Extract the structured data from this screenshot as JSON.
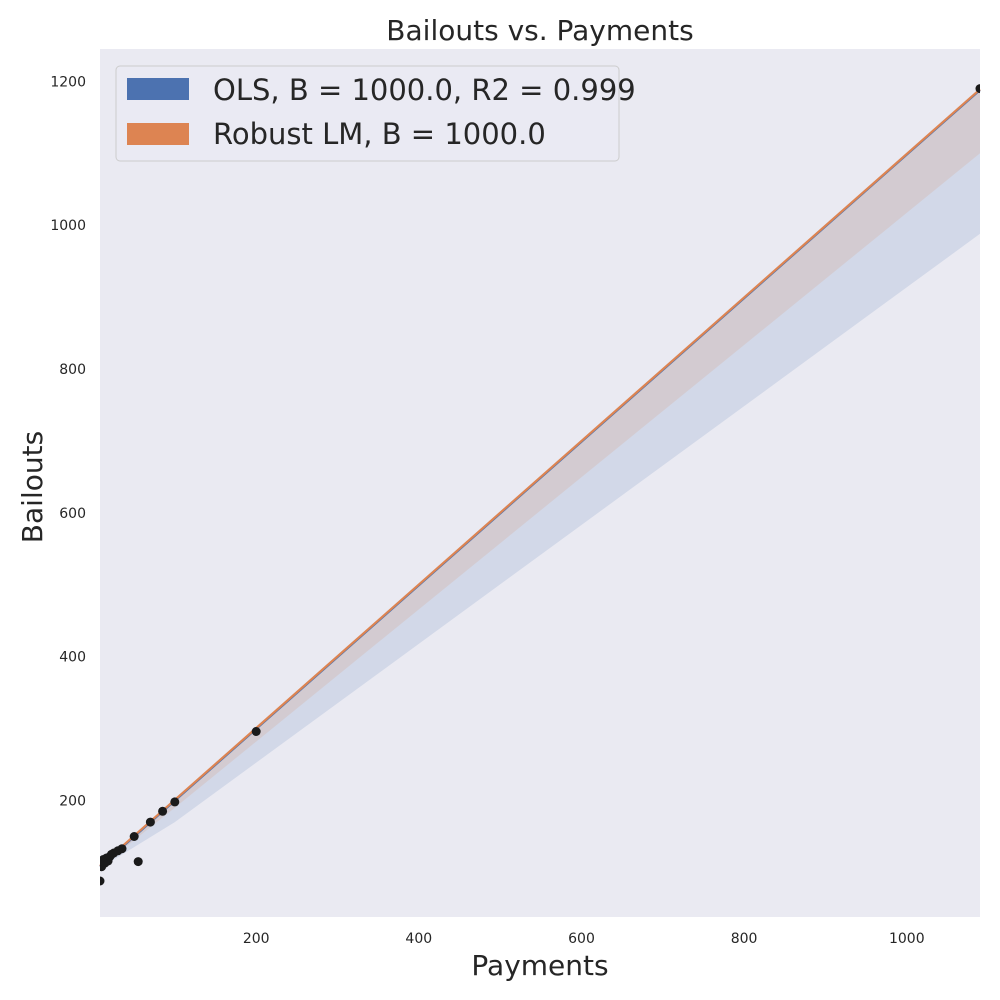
{
  "chart_data": {
    "type": "scatter",
    "title": "Bailouts vs. Payments",
    "xlabel": "Payments",
    "ylabel": "Bailouts",
    "xlim": [
      8,
      1090
    ],
    "ylim": [
      38,
      1245
    ],
    "xticks": [
      200,
      400,
      600,
      800,
      1000
    ],
    "yticks": [
      200,
      400,
      600,
      800,
      1000,
      1200
    ],
    "grid": false,
    "legend_position": "top-left",
    "background_color": "#EAEAF2",
    "points": [
      {
        "x": 8,
        "y": 88
      },
      {
        "x": 9,
        "y": 112
      },
      {
        "x": 10,
        "y": 108
      },
      {
        "x": 11,
        "y": 115
      },
      {
        "x": 12,
        "y": 118
      },
      {
        "x": 14,
        "y": 113
      },
      {
        "x": 16,
        "y": 120
      },
      {
        "x": 18,
        "y": 116
      },
      {
        "x": 20,
        "y": 122
      },
      {
        "x": 22,
        "y": 125
      },
      {
        "x": 25,
        "y": 127
      },
      {
        "x": 30,
        "y": 130
      },
      {
        "x": 35,
        "y": 133
      },
      {
        "x": 50,
        "y": 150
      },
      {
        "x": 55,
        "y": 115
      },
      {
        "x": 70,
        "y": 170
      },
      {
        "x": 85,
        "y": 185
      },
      {
        "x": 100,
        "y": 198
      },
      {
        "x": 200,
        "y": 296
      },
      {
        "x": 1090,
        "y": 1190
      }
    ],
    "series": [
      {
        "name": "OLS, B = 1000.0, R2 = 0.999",
        "color": "#4C72B0",
        "line": [
          [
            8,
            108
          ],
          [
            1090,
            1188
          ]
        ],
        "band_upper": [
          [
            8,
            110
          ],
          [
            1090,
            1190
          ]
        ],
        "band_lower": [
          [
            8,
            106
          ],
          [
            100,
            170
          ],
          [
            1090,
            988
          ]
        ]
      },
      {
        "name": "Robust LM, B = 1000.0",
        "color": "#DD8452",
        "line": [
          [
            8,
            109
          ],
          [
            1090,
            1189
          ]
        ],
        "band_upper": [
          [
            8,
            111
          ],
          [
            1090,
            1191
          ]
        ],
        "band_lower": [
          [
            8,
            107
          ],
          [
            100,
            190
          ],
          [
            1090,
            1100
          ]
        ]
      }
    ]
  }
}
